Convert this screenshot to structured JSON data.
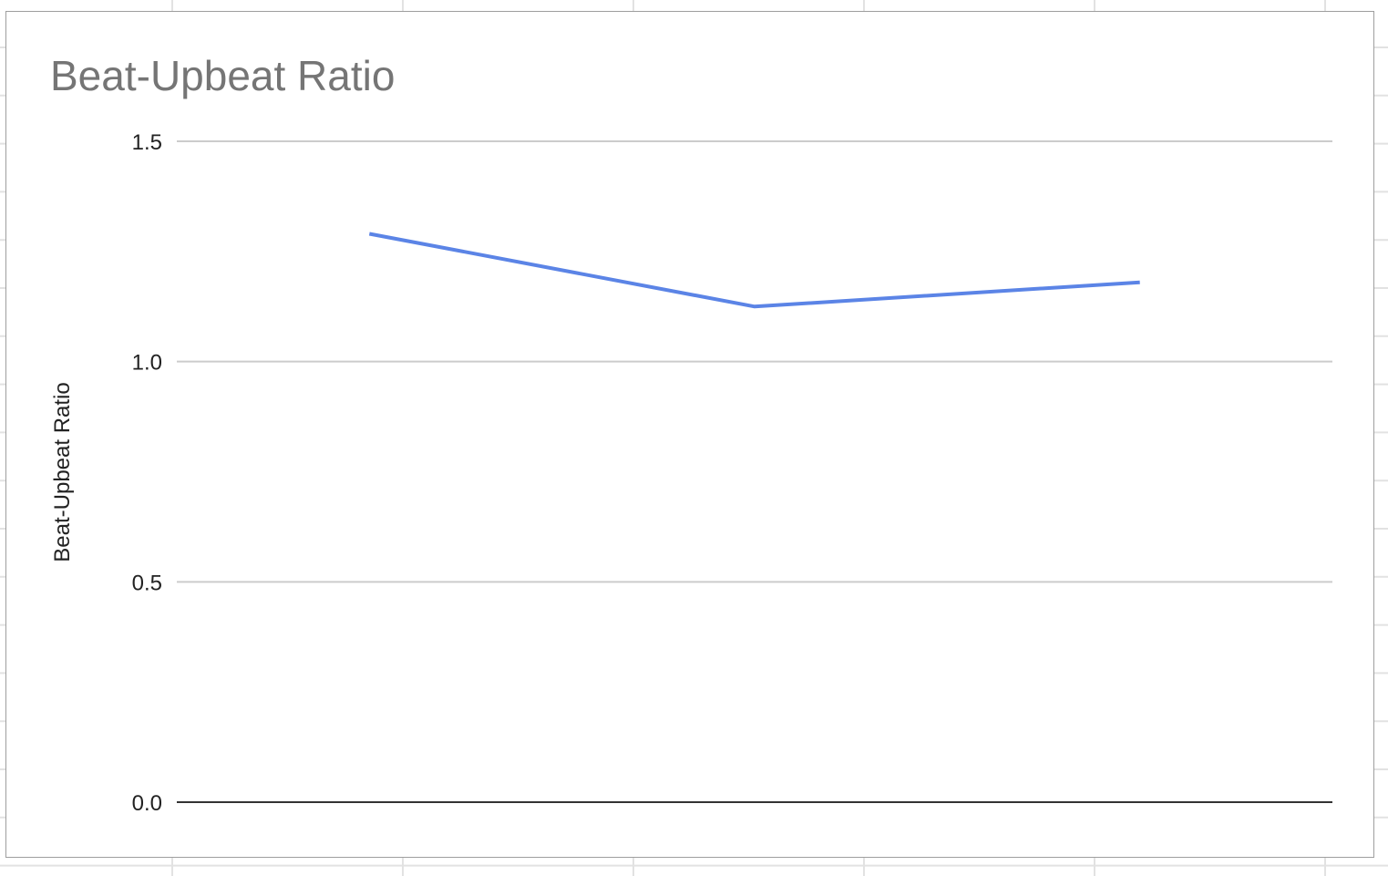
{
  "chart_data": {
    "type": "line",
    "title": "Beat-Upbeat Ratio",
    "xlabel": "",
    "ylabel": "Beat-Upbeat Ratio",
    "ylim": [
      0,
      1.5
    ],
    "yticks": [
      "0.0",
      "0.5",
      "1.0",
      "1.5"
    ],
    "grid": true,
    "legend": "none",
    "series": [
      {
        "values": [
          1.29,
          1.125,
          1.18
        ],
        "color": "#5b84e6"
      }
    ]
  },
  "colors": {
    "line": "#5b84e6",
    "gridline": "#cccccc",
    "baseline": "#333333",
    "title": "#757575",
    "frame": "#9e9e9e",
    "sheet_grid": "#e2e2e2"
  }
}
